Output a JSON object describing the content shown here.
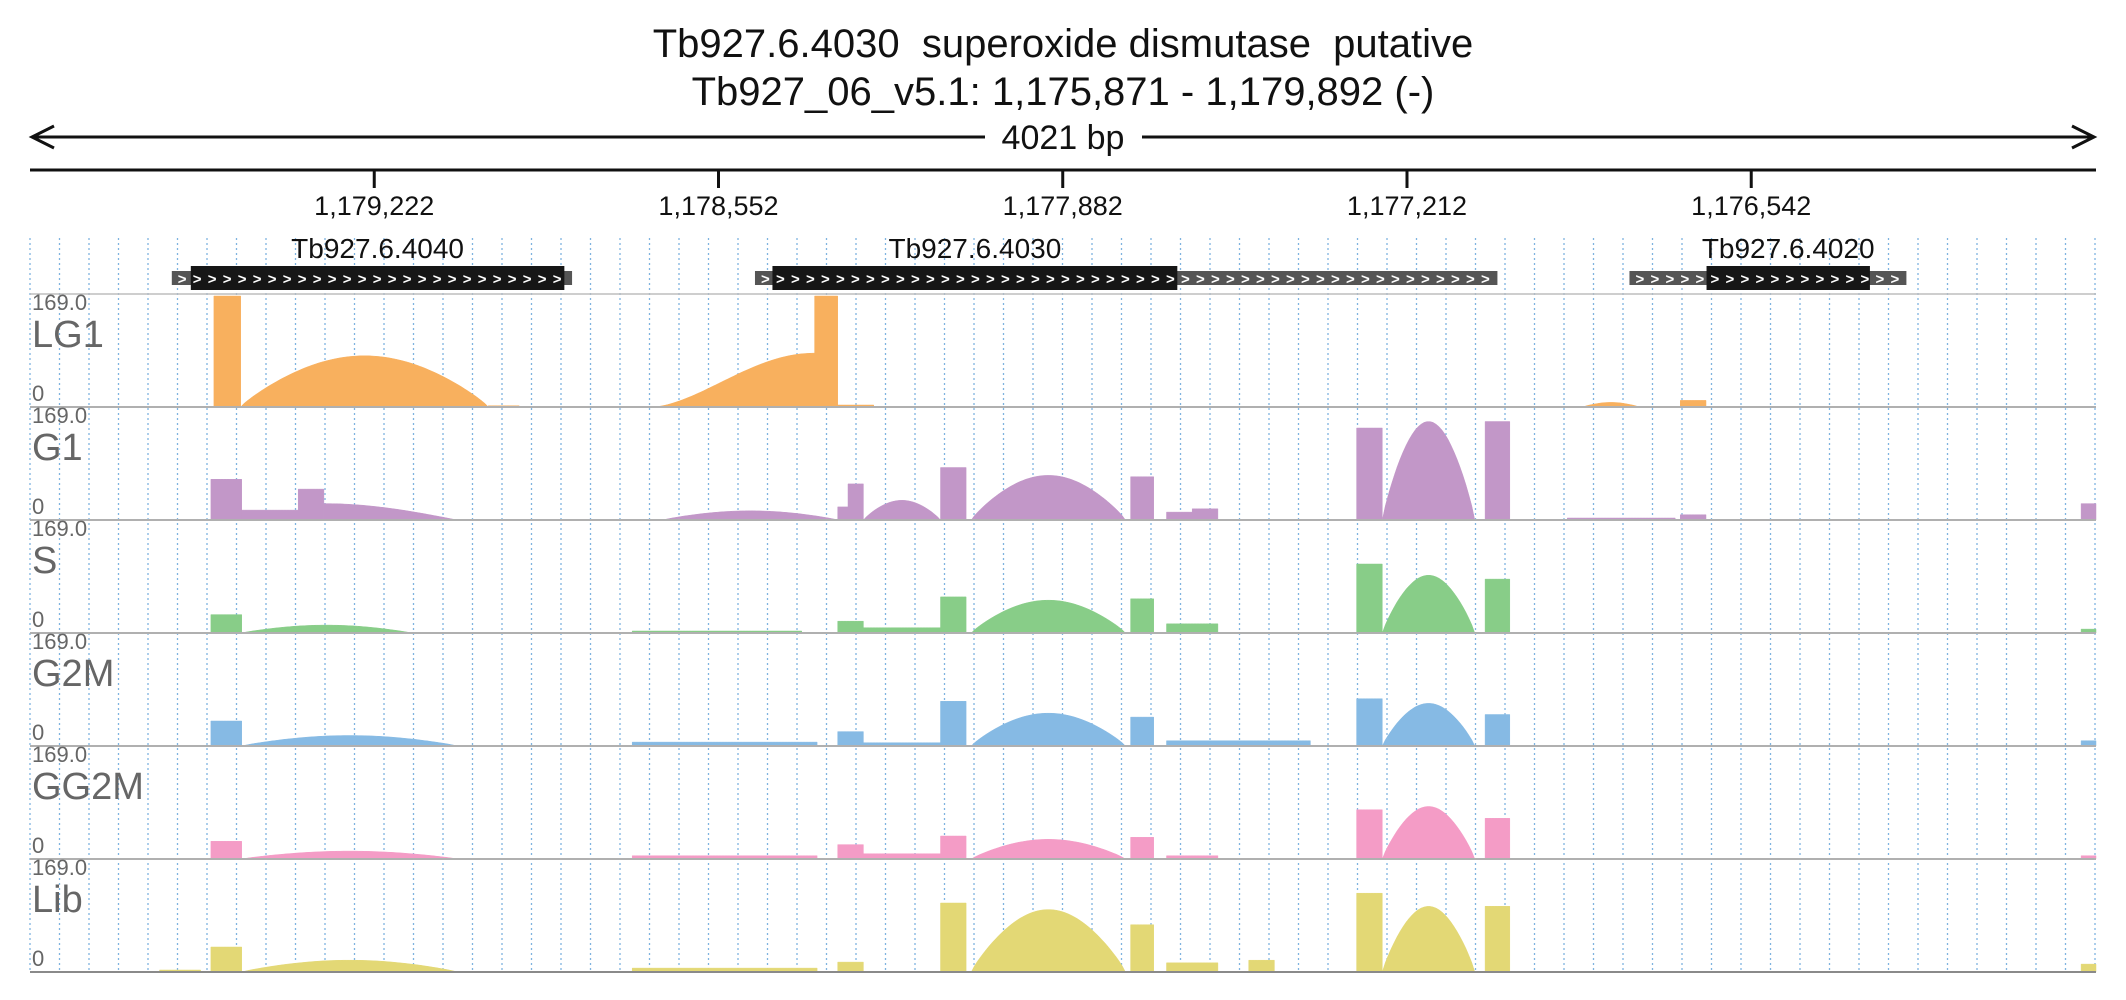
{
  "chart_data": {
    "type": "area",
    "title": "Tb927.6.4030  superoxide dismutase  putative",
    "subtitle": "Tb927_06_v5.1: 1,175,871 - 1,179,892 (-)",
    "span_label": "4021 bp",
    "region": {
      "start": 1179892,
      "end": 1175871,
      "strand": "-"
    },
    "ticks": [
      {
        "pos": 1179222,
        "label": "1,179,222"
      },
      {
        "pos": 1178552,
        "label": "1,178,552"
      },
      {
        "pos": 1177882,
        "label": "1,177,882"
      },
      {
        "pos": 1177212,
        "label": "1,177,212"
      },
      {
        "pos": 1176542,
        "label": "1,176,542"
      }
    ],
    "genes": [
      {
        "name": "Tb927.6.4040",
        "utr": [
          1179616,
          1178837
        ],
        "cds": [
          1179579,
          1178852
        ]
      },
      {
        "name": "Tb927.6.4030",
        "utr": [
          1178481,
          1177036
        ],
        "cds": [
          1178447,
          1177659
        ]
      },
      {
        "name": "Tb927.6.4020",
        "utr": [
          1176779,
          1176240
        ],
        "cds": [
          1176629,
          1176311
        ]
      }
    ],
    "grid": true,
    "tracks": [
      {
        "name": "LG1",
        "color": "#F8B05E",
        "max_label": "169.0",
        "min_label": "0",
        "ylim": [
          0,
          169
        ],
        "segments": [
          {
            "range": [
              1179534,
              1179482
            ],
            "shape": "flat",
            "peak": 169
          },
          {
            "range": [
              1179482,
              1179000
            ],
            "shape": "hump",
            "peak": 78
          },
          {
            "range": [
              1179000,
              1178940
            ],
            "shape": "flat",
            "peak": 2
          },
          {
            "range": [
              1178680,
              1178365
            ],
            "shape": "rise",
            "peak": 82
          },
          {
            "range": [
              1178365,
              1178320
            ],
            "shape": "flat",
            "peak": 169
          },
          {
            "range": [
              1178320,
              1178250
            ],
            "shape": "flat",
            "peak": 3
          },
          {
            "range": [
              1176870,
              1176760
            ],
            "shape": "hump",
            "peak": 7
          },
          {
            "range": [
              1176680,
              1176630
            ],
            "shape": "flat",
            "peak": 10
          }
        ]
      },
      {
        "name": "G1",
        "color": "#C297C8",
        "max_label": "169.0",
        "min_label": "0",
        "ylim": [
          0,
          169
        ],
        "segments": [
          {
            "range": [
              1179540,
              1179480
            ],
            "shape": "flat",
            "peak": 62
          },
          {
            "range": [
              1179480,
              1179370
            ],
            "shape": "flat",
            "peak": 15
          },
          {
            "range": [
              1179370,
              1179320
            ],
            "shape": "flat",
            "peak": 47
          },
          {
            "range": [
              1179320,
              1179060
            ],
            "shape": "fall",
            "peak": 25
          },
          {
            "range": [
              1178660,
              1178320
            ],
            "shape": "hump",
            "peak": 14
          },
          {
            "range": [
              1178320,
              1178300
            ],
            "shape": "flat",
            "peak": 20
          },
          {
            "range": [
              1178300,
              1178270
            ],
            "shape": "flat",
            "peak": 55
          },
          {
            "range": [
              1178270,
              1178120
            ],
            "shape": "hump",
            "peak": 30
          },
          {
            "range": [
              1178120,
              1178070
            ],
            "shape": "flat",
            "peak": 80
          },
          {
            "range": [
              1178060,
              1177760
            ],
            "shape": "hump",
            "peak": 68
          },
          {
            "range": [
              1177750,
              1177705
            ],
            "shape": "flat",
            "peak": 66
          },
          {
            "range": [
              1177680,
              1177630
            ],
            "shape": "flat",
            "peak": 12
          },
          {
            "range": [
              1177630,
              1177580
            ],
            "shape": "flat",
            "peak": 17
          },
          {
            "range": [
              1177310,
              1177260
            ],
            "shape": "flat",
            "peak": 140
          },
          {
            "range": [
              1177260,
              1177080
            ],
            "shape": "hump",
            "peak": 150
          },
          {
            "range": [
              1177060,
              1177012
            ],
            "shape": "flat",
            "peak": 150
          },
          {
            "range": [
              1176900,
              1176690
            ],
            "shape": "flat",
            "peak": 3
          },
          {
            "range": [
              1176680,
              1176630
            ],
            "shape": "flat",
            "peak": 8
          },
          {
            "range": [
              1175900,
              1175871
            ],
            "shape": "flat",
            "peak": 25
          }
        ]
      },
      {
        "name": "S",
        "color": "#88CD88",
        "max_label": "169.0",
        "min_label": "0",
        "ylim": [
          0,
          169
        ],
        "segments": [
          {
            "range": [
              1179540,
              1179480
            ],
            "shape": "flat",
            "peak": 28
          },
          {
            "range": [
              1179480,
              1179150
            ],
            "shape": "hump",
            "peak": 12
          },
          {
            "range": [
              1178720,
              1178390
            ],
            "shape": "flat",
            "peak": 3
          },
          {
            "range": [
              1178320,
              1178270
            ],
            "shape": "flat",
            "peak": 18
          },
          {
            "range": [
              1178270,
              1178120
            ],
            "shape": "flat",
            "peak": 8
          },
          {
            "range": [
              1178120,
              1178070
            ],
            "shape": "flat",
            "peak": 55
          },
          {
            "range": [
              1178060,
              1177760
            ],
            "shape": "hump",
            "peak": 50
          },
          {
            "range": [
              1177750,
              1177705
            ],
            "shape": "flat",
            "peak": 52
          },
          {
            "range": [
              1177680,
              1177580
            ],
            "shape": "flat",
            "peak": 14
          },
          {
            "range": [
              1177310,
              1177260
            ],
            "shape": "flat",
            "peak": 105
          },
          {
            "range": [
              1177260,
              1177080
            ],
            "shape": "hump",
            "peak": 88
          },
          {
            "range": [
              1177060,
              1177012
            ],
            "shape": "flat",
            "peak": 82
          },
          {
            "range": [
              1175900,
              1175871
            ],
            "shape": "flat",
            "peak": 6
          }
        ]
      },
      {
        "name": "G2M",
        "color": "#86BAE4",
        "max_label": "169.0",
        "min_label": "0",
        "ylim": [
          0,
          169
        ],
        "segments": [
          {
            "range": [
              1179540,
              1179480
            ],
            "shape": "flat",
            "peak": 38
          },
          {
            "range": [
              1179480,
              1179060
            ],
            "shape": "hump",
            "peak": 16
          },
          {
            "range": [
              1178720,
              1178360
            ],
            "shape": "flat",
            "peak": 6
          },
          {
            "range": [
              1178320,
              1178270
            ],
            "shape": "flat",
            "peak": 22
          },
          {
            "range": [
              1178270,
              1178120
            ],
            "shape": "flat",
            "peak": 5
          },
          {
            "range": [
              1178120,
              1178070
            ],
            "shape": "flat",
            "peak": 68
          },
          {
            "range": [
              1178060,
              1177760
            ],
            "shape": "hump",
            "peak": 50
          },
          {
            "range": [
              1177750,
              1177705
            ],
            "shape": "flat",
            "peak": 44
          },
          {
            "range": [
              1177680,
              1177400
            ],
            "shape": "flat",
            "peak": 8
          },
          {
            "range": [
              1177310,
              1177260
            ],
            "shape": "flat",
            "peak": 72
          },
          {
            "range": [
              1177260,
              1177080
            ],
            "shape": "hump",
            "peak": 65
          },
          {
            "range": [
              1177060,
              1177012
            ],
            "shape": "flat",
            "peak": 48
          },
          {
            "range": [
              1175900,
              1175871
            ],
            "shape": "flat",
            "peak": 8
          }
        ]
      },
      {
        "name": "GG2M",
        "color": "#F49CC6",
        "max_label": "169.0",
        "min_label": "0",
        "ylim": [
          0,
          169
        ],
        "segments": [
          {
            "range": [
              1179540,
              1179480
            ],
            "shape": "flat",
            "peak": 27
          },
          {
            "range": [
              1179480,
              1179060
            ],
            "shape": "hump",
            "peak": 12
          },
          {
            "range": [
              1178720,
              1178360
            ],
            "shape": "flat",
            "peak": 5
          },
          {
            "range": [
              1178320,
              1178270
            ],
            "shape": "flat",
            "peak": 22
          },
          {
            "range": [
              1178270,
              1178120
            ],
            "shape": "flat",
            "peak": 8
          },
          {
            "range": [
              1178120,
              1178070
            ],
            "shape": "flat",
            "peak": 35
          },
          {
            "range": [
              1178060,
              1177760
            ],
            "shape": "hump",
            "peak": 30
          },
          {
            "range": [
              1177750,
              1177705
            ],
            "shape": "flat",
            "peak": 33
          },
          {
            "range": [
              1177680,
              1177580
            ],
            "shape": "flat",
            "peak": 5
          },
          {
            "range": [
              1177310,
              1177260
            ],
            "shape": "flat",
            "peak": 75
          },
          {
            "range": [
              1177260,
              1177080
            ],
            "shape": "hump",
            "peak": 80
          },
          {
            "range": [
              1177060,
              1177012
            ],
            "shape": "flat",
            "peak": 62
          },
          {
            "range": [
              1175900,
              1175871
            ],
            "shape": "flat",
            "peak": 5
          }
        ]
      },
      {
        "name": "Lib",
        "color": "#E3D875",
        "max_label": "169.0",
        "min_label": "0",
        "ylim": [
          0,
          169
        ],
        "segments": [
          {
            "range": [
              1179640,
              1179560
            ],
            "shape": "flat",
            "peak": 3
          },
          {
            "range": [
              1179540,
              1179480
            ],
            "shape": "flat",
            "peak": 38
          },
          {
            "range": [
              1179480,
              1179060
            ],
            "shape": "hump",
            "peak": 18
          },
          {
            "range": [
              1178720,
              1178360
            ],
            "shape": "flat",
            "peak": 6
          },
          {
            "range": [
              1178320,
              1178270
            ],
            "shape": "flat",
            "peak": 15
          },
          {
            "range": [
              1178120,
              1178070
            ],
            "shape": "flat",
            "peak": 105
          },
          {
            "range": [
              1178060,
              1177760
            ],
            "shape": "hump",
            "peak": 95
          },
          {
            "range": [
              1177750,
              1177705
            ],
            "shape": "flat",
            "peak": 72
          },
          {
            "range": [
              1177680,
              1177580
            ],
            "shape": "flat",
            "peak": 14
          },
          {
            "range": [
              1177520,
              1177470
            ],
            "shape": "flat",
            "peak": 18
          },
          {
            "range": [
              1177310,
              1177260
            ],
            "shape": "flat",
            "peak": 120
          },
          {
            "range": [
              1177260,
              1177080
            ],
            "shape": "hump",
            "peak": 100
          },
          {
            "range": [
              1177060,
              1177012
            ],
            "shape": "flat",
            "peak": 100
          },
          {
            "range": [
              1175900,
              1175871
            ],
            "shape": "flat",
            "peak": 12
          }
        ]
      }
    ]
  }
}
